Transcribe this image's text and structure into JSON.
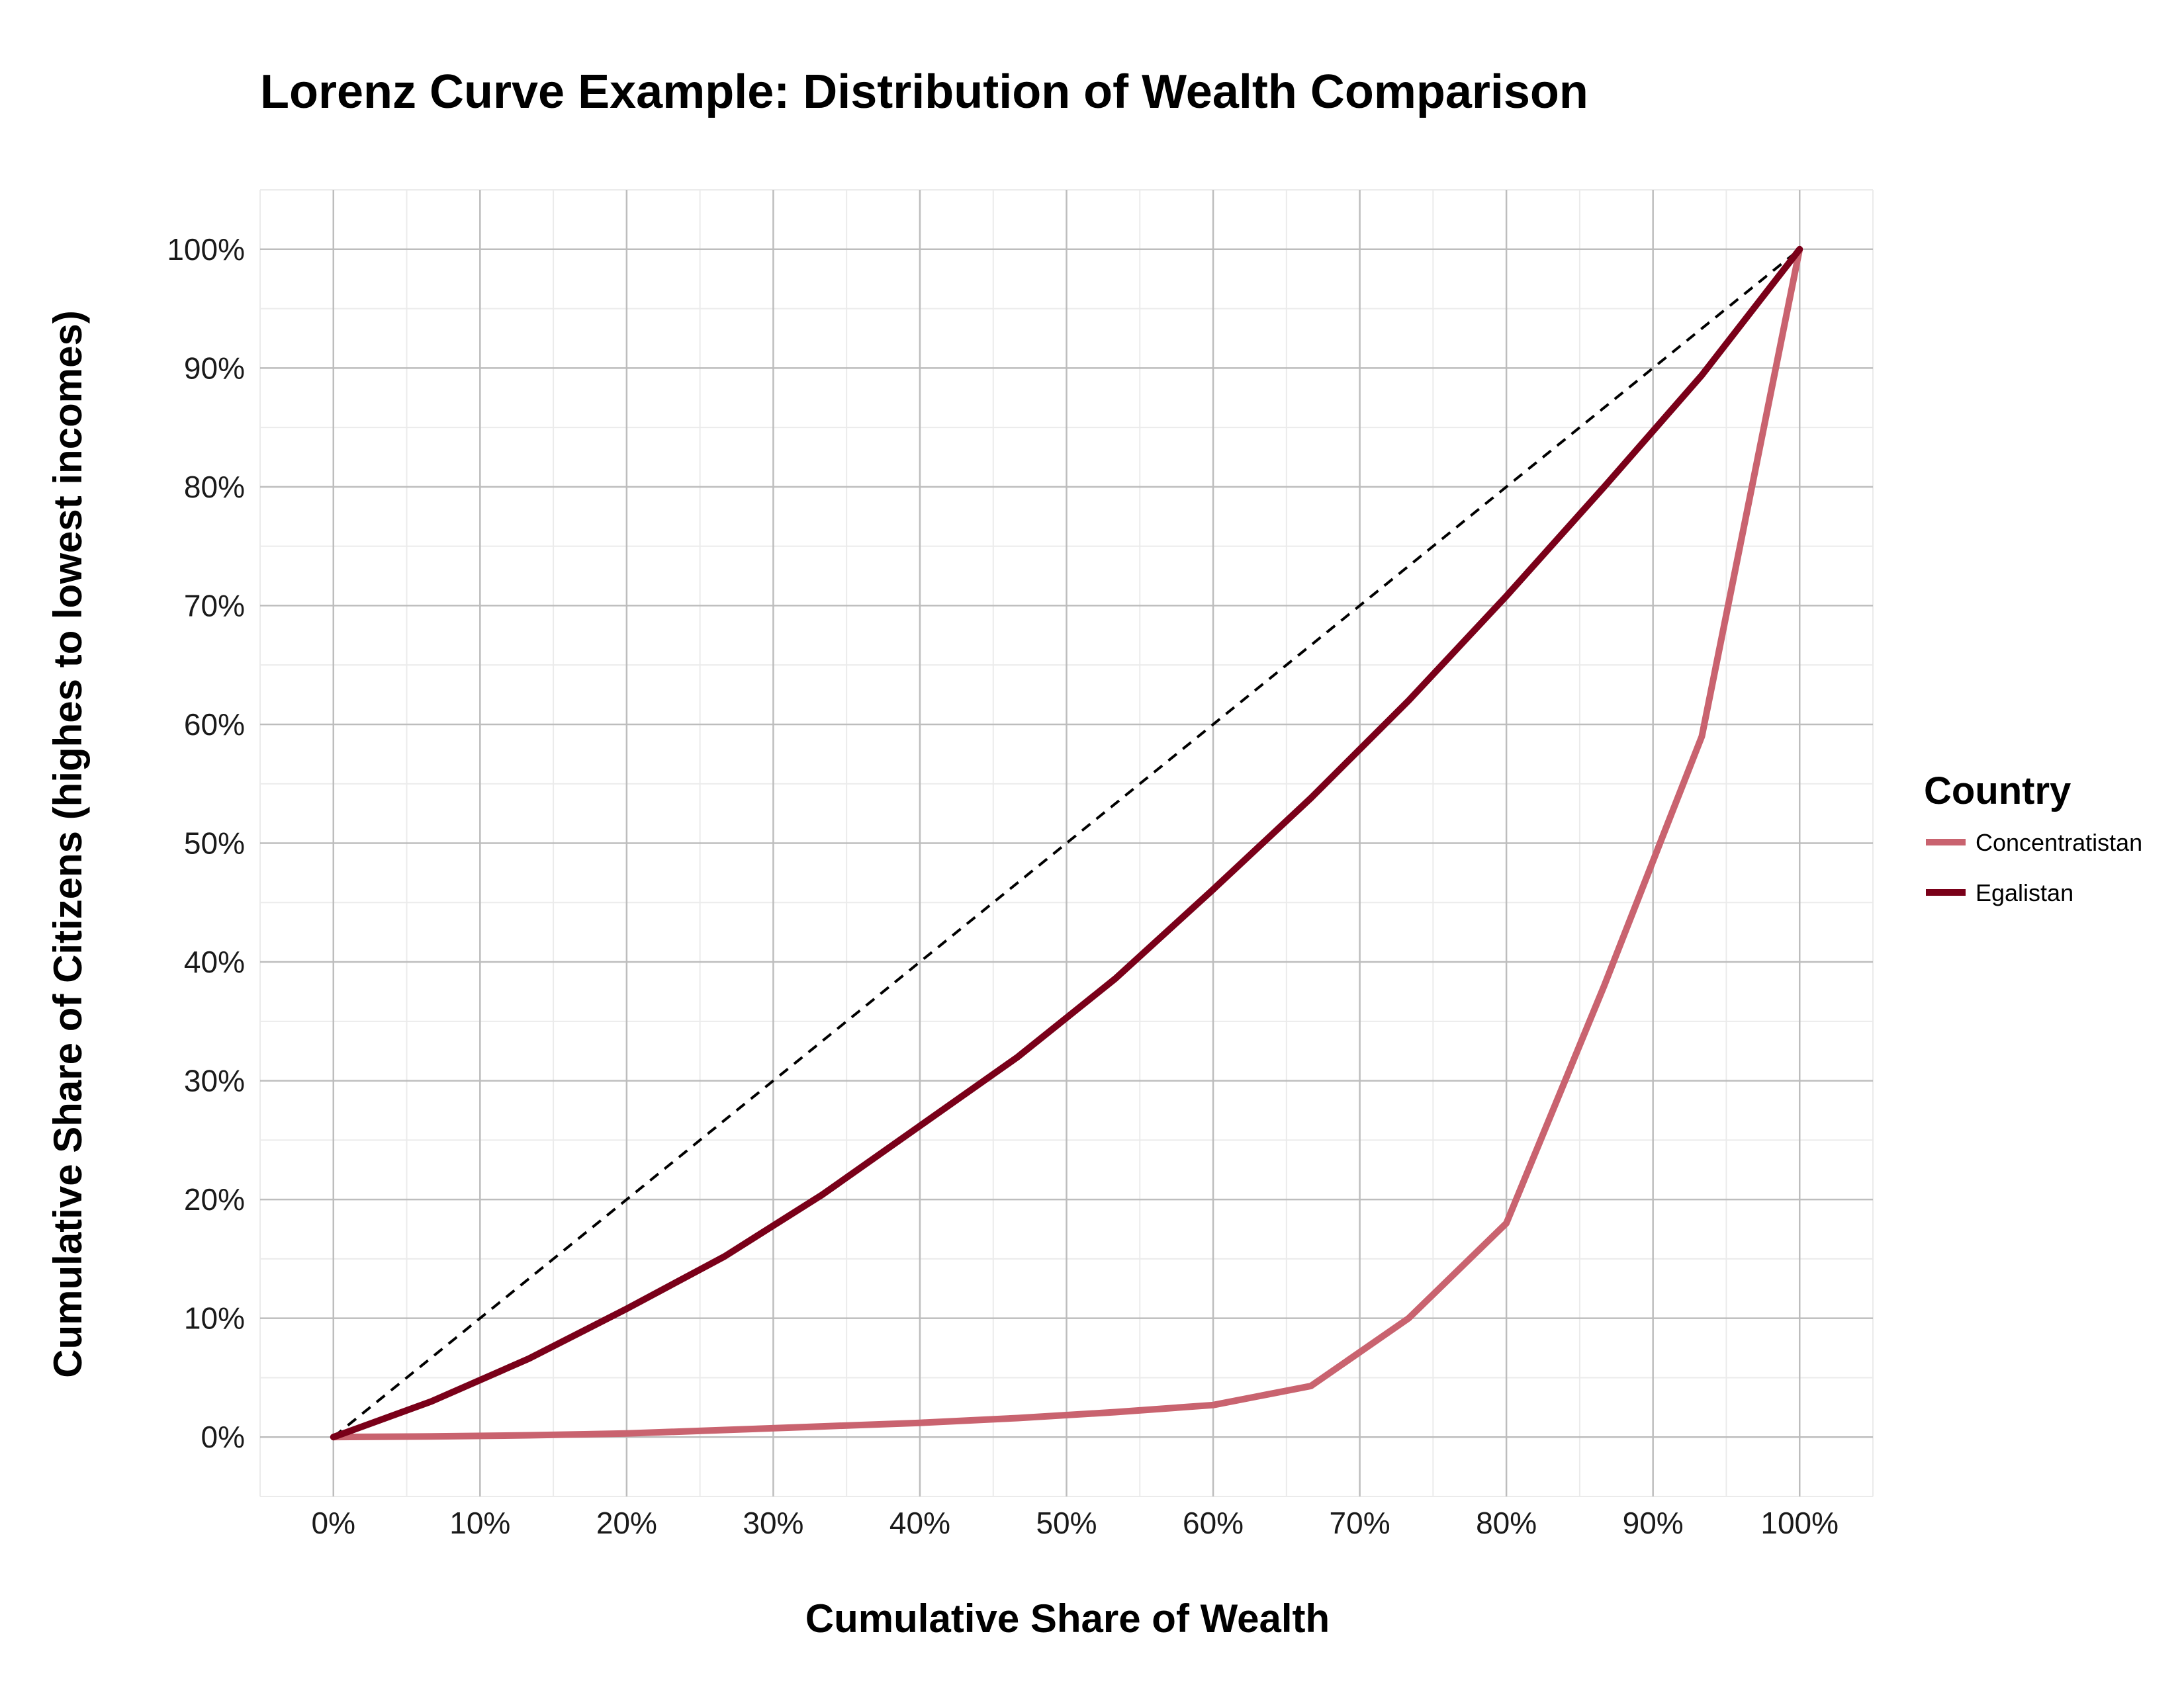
{
  "chart_data": {
    "type": "line",
    "title": "Lorenz Curve Example: Distribution of Wealth Comparison",
    "xlabel": "Cumulative Share of Wealth",
    "ylabel": "Cumulative Share of Citizens (highes to lowest incomes)",
    "xlim": [
      -0.05,
      1.05
    ],
    "ylim": [
      -0.05,
      1.05
    ],
    "x_ticks": [
      0,
      0.1,
      0.2,
      0.3,
      0.4,
      0.5,
      0.6,
      0.7,
      0.8,
      0.9,
      1.0
    ],
    "x_tick_labels": [
      "0%",
      "10%",
      "20%",
      "30%",
      "40%",
      "50%",
      "60%",
      "70%",
      "80%",
      "90%",
      "100%"
    ],
    "y_ticks": [
      0,
      0.1,
      0.2,
      0.3,
      0.4,
      0.5,
      0.6,
      0.7,
      0.8,
      0.9,
      1.0
    ],
    "y_tick_labels": [
      "0%",
      "10%",
      "20%",
      "30%",
      "40%",
      "50%",
      "60%",
      "70%",
      "80%",
      "90%",
      "100%"
    ],
    "grid": true,
    "legend": {
      "title": "Country",
      "position": "right"
    },
    "reference_line": {
      "x": [
        0,
        1
      ],
      "y": [
        0,
        1
      ],
      "style": "dashed",
      "color": "#000000"
    },
    "series": [
      {
        "name": "Concentratistan",
        "color": "#c9636f",
        "x": [
          0,
          0.0667,
          0.1333,
          0.2,
          0.2667,
          0.3333,
          0.4,
          0.4667,
          0.5333,
          0.6,
          0.6667,
          0.7333,
          0.8,
          0.8667,
          0.9333,
          1.0
        ],
        "y": [
          0,
          0.0005,
          0.0015,
          0.003,
          0.006,
          0.009,
          0.012,
          0.016,
          0.021,
          0.027,
          0.043,
          0.1,
          0.18,
          0.38,
          0.59,
          1.0
        ]
      },
      {
        "name": "Egalistan",
        "color": "#7a0019",
        "x": [
          0,
          0.0667,
          0.1333,
          0.2,
          0.2667,
          0.3333,
          0.4,
          0.4667,
          0.5333,
          0.6,
          0.6667,
          0.7333,
          0.8,
          0.8667,
          0.9333,
          1.0
        ],
        "y": [
          0,
          0.03,
          0.066,
          0.108,
          0.152,
          0.204,
          0.262,
          0.32,
          0.386,
          0.461,
          0.538,
          0.62,
          0.708,
          0.8,
          0.894,
          1.0
        ]
      }
    ]
  }
}
